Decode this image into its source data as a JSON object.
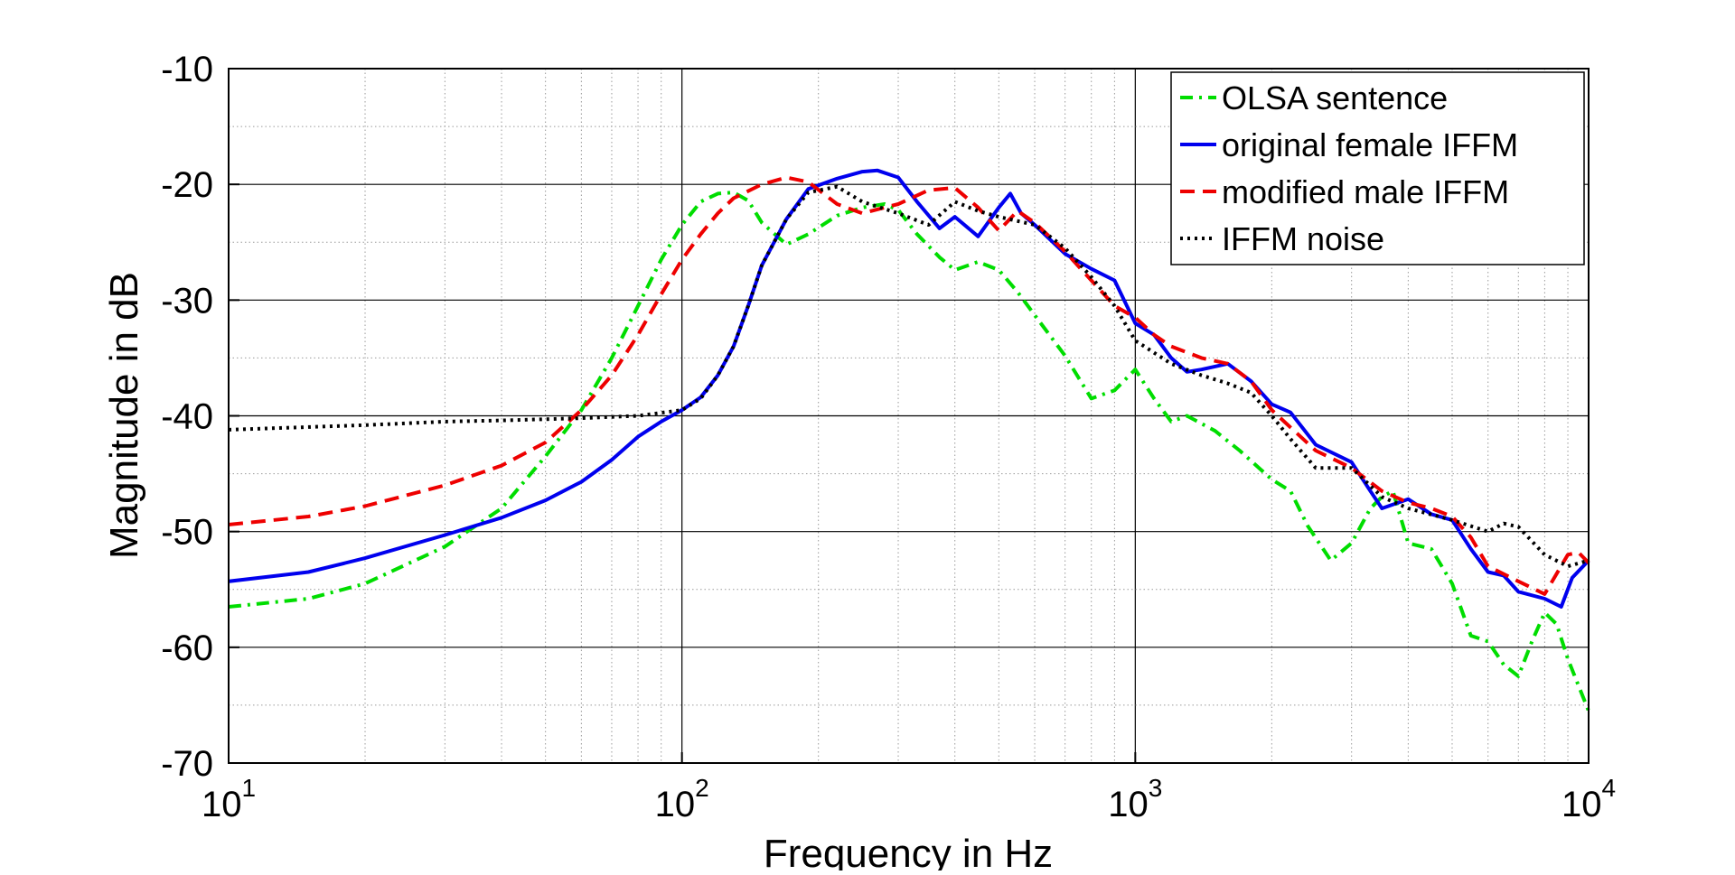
{
  "chart_data": {
    "type": "line",
    "title": "",
    "xlabel": "Frequency in Hz",
    "ylabel": "Magnitude in dB",
    "xscale": "log",
    "xlim": [
      10,
      10000
    ],
    "ylim": [
      -70,
      -10
    ],
    "xticks": [
      10,
      100,
      1000,
      10000
    ],
    "xtick_labels": [
      {
        "base": "10",
        "exp": "1"
      },
      {
        "base": "10",
        "exp": "2"
      },
      {
        "base": "10",
        "exp": "3"
      },
      {
        "base": "10",
        "exp": "4"
      }
    ],
    "yticks": [
      -70,
      -60,
      -50,
      -40,
      -30,
      -20,
      -10
    ],
    "ytick_labels": [
      "-70",
      "-60",
      "-50",
      "-40",
      "-30",
      "-20",
      "-10"
    ],
    "grid": true,
    "legend_position": "top-right",
    "series": [
      {
        "name": "OLSA sentence",
        "color": "#00dd00",
        "style": "dashdot",
        "points": [
          [
            10,
            -56.5
          ],
          [
            15,
            -55.8
          ],
          [
            20,
            -54.5
          ],
          [
            30,
            -51.3
          ],
          [
            40,
            -48
          ],
          [
            50,
            -43.5
          ],
          [
            60,
            -39.5
          ],
          [
            70,
            -35
          ],
          [
            80,
            -30.5
          ],
          [
            90,
            -26.5
          ],
          [
            100,
            -23.5
          ],
          [
            110,
            -21.5
          ],
          [
            120,
            -20.8
          ],
          [
            130,
            -20.7
          ],
          [
            140,
            -21.4
          ],
          [
            150,
            -23.3
          ],
          [
            170,
            -25.2
          ],
          [
            190,
            -24.3
          ],
          [
            220,
            -22.7
          ],
          [
            250,
            -22
          ],
          [
            280,
            -21.7
          ],
          [
            300,
            -22.2
          ],
          [
            330,
            -24.3
          ],
          [
            370,
            -26.3
          ],
          [
            400,
            -27.4
          ],
          [
            450,
            -26.7
          ],
          [
            500,
            -27.4
          ],
          [
            550,
            -29.3
          ],
          [
            600,
            -31.3
          ],
          [
            700,
            -34.8
          ],
          [
            800,
            -38.5
          ],
          [
            900,
            -37.8
          ],
          [
            1000,
            -36
          ],
          [
            1100,
            -38.5
          ],
          [
            1200,
            -40.5
          ],
          [
            1300,
            -40
          ],
          [
            1500,
            -41.3
          ],
          [
            1700,
            -43
          ],
          [
            2000,
            -45.5
          ],
          [
            2200,
            -46.5
          ],
          [
            2400,
            -49.5
          ],
          [
            2700,
            -52.5
          ],
          [
            3000,
            -51
          ],
          [
            3300,
            -48
          ],
          [
            3500,
            -47
          ],
          [
            3700,
            -46.5
          ],
          [
            4000,
            -51
          ],
          [
            4500,
            -51.5
          ],
          [
            5000,
            -54.5
          ],
          [
            5500,
            -59
          ],
          [
            6000,
            -59.5
          ],
          [
            6500,
            -61.5
          ],
          [
            7000,
            -62.5
          ],
          [
            7500,
            -59.5
          ],
          [
            8000,
            -57
          ],
          [
            8500,
            -58
          ],
          [
            9000,
            -61
          ],
          [
            10000,
            -65.5
          ]
        ]
      },
      {
        "name": "original female IFFM",
        "color": "#0000ee",
        "style": "solid",
        "points": [
          [
            10,
            -54.3
          ],
          [
            15,
            -53.5
          ],
          [
            20,
            -52.3
          ],
          [
            30,
            -50.3
          ],
          [
            40,
            -48.8
          ],
          [
            50,
            -47.3
          ],
          [
            60,
            -45.7
          ],
          [
            70,
            -43.8
          ],
          [
            80,
            -41.8
          ],
          [
            90,
            -40.5
          ],
          [
            100,
            -39.5
          ],
          [
            110,
            -38.4
          ],
          [
            120,
            -36.5
          ],
          [
            130,
            -34
          ],
          [
            140,
            -30.5
          ],
          [
            150,
            -27
          ],
          [
            170,
            -23
          ],
          [
            190,
            -20.4
          ],
          [
            220,
            -19.5
          ],
          [
            250,
            -18.9
          ],
          [
            270,
            -18.8
          ],
          [
            300,
            -19.4
          ],
          [
            330,
            -21.5
          ],
          [
            370,
            -23.8
          ],
          [
            400,
            -22.8
          ],
          [
            450,
            -24.5
          ],
          [
            500,
            -22
          ],
          [
            530,
            -20.8
          ],
          [
            560,
            -22.5
          ],
          [
            600,
            -23.5
          ],
          [
            700,
            -26
          ],
          [
            800,
            -27.3
          ],
          [
            900,
            -28.3
          ],
          [
            1000,
            -32
          ],
          [
            1100,
            -33
          ],
          [
            1200,
            -35
          ],
          [
            1300,
            -36.2
          ],
          [
            1400,
            -36
          ],
          [
            1600,
            -35.5
          ],
          [
            1800,
            -37
          ],
          [
            2000,
            -39
          ],
          [
            2200,
            -39.7
          ],
          [
            2500,
            -42.5
          ],
          [
            3000,
            -44
          ],
          [
            3300,
            -46.5
          ],
          [
            3500,
            -48
          ],
          [
            4000,
            -47.2
          ],
          [
            4500,
            -48.5
          ],
          [
            5000,
            -49
          ],
          [
            5500,
            -51.5
          ],
          [
            6000,
            -53.5
          ],
          [
            6500,
            -53.8
          ],
          [
            7000,
            -55.2
          ],
          [
            8000,
            -55.8
          ],
          [
            8700,
            -56.5
          ],
          [
            9200,
            -54
          ],
          [
            10000,
            -52.5
          ]
        ]
      },
      {
        "name": "modified male IFFM",
        "color": "#ee0000",
        "style": "dashed",
        "points": [
          [
            10,
            -49.4
          ],
          [
            15,
            -48.7
          ],
          [
            20,
            -47.8
          ],
          [
            30,
            -46
          ],
          [
            40,
            -44.3
          ],
          [
            50,
            -42.3
          ],
          [
            60,
            -39.5
          ],
          [
            70,
            -36.5
          ],
          [
            80,
            -33
          ],
          [
            90,
            -29.5
          ],
          [
            100,
            -26.5
          ],
          [
            110,
            -24.3
          ],
          [
            120,
            -22.5
          ],
          [
            130,
            -21.2
          ],
          [
            150,
            -20
          ],
          [
            170,
            -19.4
          ],
          [
            190,
            -19.8
          ],
          [
            220,
            -21.7
          ],
          [
            250,
            -22.5
          ],
          [
            280,
            -22
          ],
          [
            300,
            -21.7
          ],
          [
            350,
            -20.5
          ],
          [
            400,
            -20.3
          ],
          [
            450,
            -22
          ],
          [
            500,
            -24
          ],
          [
            550,
            -22.3
          ],
          [
            600,
            -23.3
          ],
          [
            700,
            -25.8
          ],
          [
            800,
            -28.3
          ],
          [
            900,
            -30.5
          ],
          [
            1000,
            -31.5
          ],
          [
            1100,
            -33
          ],
          [
            1200,
            -34
          ],
          [
            1400,
            -35
          ],
          [
            1600,
            -35.5
          ],
          [
            1800,
            -37
          ],
          [
            2000,
            -39.5
          ],
          [
            2200,
            -41
          ],
          [
            2500,
            -43
          ],
          [
            3000,
            -44.5
          ],
          [
            3500,
            -46.5
          ],
          [
            4000,
            -47.5
          ],
          [
            4500,
            -48
          ],
          [
            5000,
            -48.7
          ],
          [
            5500,
            -50.5
          ],
          [
            6000,
            -53
          ],
          [
            7000,
            -54.3
          ],
          [
            8000,
            -55.4
          ],
          [
            9000,
            -52
          ],
          [
            9500,
            -51.8
          ],
          [
            10000,
            -52.7
          ]
        ]
      },
      {
        "name": "IFFM noise",
        "color": "#000000",
        "style": "dotted",
        "points": [
          [
            10,
            -41.2
          ],
          [
            20,
            -40.8
          ],
          [
            30,
            -40.5
          ],
          [
            40,
            -40.4
          ],
          [
            60,
            -40.2
          ],
          [
            80,
            -40
          ],
          [
            100,
            -39.5
          ],
          [
            110,
            -38.5
          ],
          [
            120,
            -36.5
          ],
          [
            130,
            -34
          ],
          [
            140,
            -30.5
          ],
          [
            150,
            -27
          ],
          [
            170,
            -23
          ],
          [
            190,
            -20.7
          ],
          [
            220,
            -20.2
          ],
          [
            250,
            -21.5
          ],
          [
            300,
            -22.5
          ],
          [
            350,
            -23.5
          ],
          [
            400,
            -21.5
          ],
          [
            450,
            -22.3
          ],
          [
            500,
            -22.8
          ],
          [
            600,
            -23.5
          ],
          [
            700,
            -25.5
          ],
          [
            800,
            -28
          ],
          [
            900,
            -30.5
          ],
          [
            1000,
            -33.5
          ],
          [
            1200,
            -35.5
          ],
          [
            1400,
            -36.5
          ],
          [
            1600,
            -37.2
          ],
          [
            1800,
            -38
          ],
          [
            2000,
            -40
          ],
          [
            2200,
            -42
          ],
          [
            2500,
            -44.5
          ],
          [
            3000,
            -44.5
          ],
          [
            3500,
            -47
          ],
          [
            4000,
            -48
          ],
          [
            5000,
            -49
          ],
          [
            6000,
            -50
          ],
          [
            6500,
            -49.3
          ],
          [
            7000,
            -49.6
          ],
          [
            8000,
            -52
          ],
          [
            9000,
            -53
          ],
          [
            10000,
            -52.5
          ]
        ]
      }
    ]
  }
}
